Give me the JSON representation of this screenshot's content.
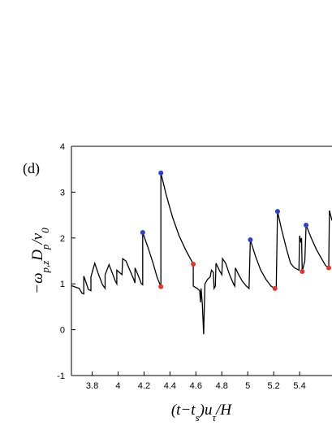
{
  "chart_data": {
    "type": "line",
    "title": "(d)",
    "xlabel": [
      "(t−t",
      "s",
      ")u",
      "τ",
      "/H"
    ],
    "ylabel": [
      "−ω",
      "p,z",
      "D",
      "p",
      "/v",
      "0"
    ],
    "xlim": [
      3.64,
      5.65
    ],
    "ylim": [
      -1,
      4
    ],
    "xticks": [
      3.8,
      4.0,
      4.2,
      4.4,
      4.6,
      4.8,
      5.0,
      5.2,
      5.4
    ],
    "yticks": [
      -1,
      0,
      1,
      2,
      3,
      4
    ],
    "series": [
      {
        "type": "line",
        "color": "#000000",
        "x": [
          3.64,
          3.67,
          3.7,
          3.72,
          3.735,
          3.735,
          3.75,
          3.77,
          3.79,
          3.79,
          3.82,
          3.85,
          3.88,
          3.9,
          3.9,
          3.93,
          3.96,
          3.98,
          3.99,
          3.99,
          4.01,
          4.03,
          4.035,
          4.06,
          4.09,
          4.12,
          4.13,
          4.13,
          4.16,
          4.18,
          4.19,
          4.19,
          4.23,
          4.27,
          4.3,
          4.33,
          4.33,
          4.37,
          4.42,
          4.47,
          4.52,
          4.58,
          4.58,
          4.61,
          4.63,
          4.635,
          4.64,
          4.65,
          4.66,
          4.665,
          4.67,
          4.69,
          4.71,
          4.72,
          4.735,
          4.74,
          4.75,
          4.755,
          4.78,
          4.8,
          4.805,
          4.83,
          4.86,
          4.89,
          4.9,
          4.905,
          4.93,
          4.96,
          4.99,
          5.01,
          5.02,
          5.06,
          5.1,
          5.14,
          5.18,
          5.21,
          5.22,
          5.23,
          5.26,
          5.3,
          5.33,
          5.36,
          5.395,
          5.4,
          5.41,
          5.415,
          5.42,
          5.44,
          5.45,
          5.49,
          5.53,
          5.57,
          5.6,
          5.625,
          5.63,
          5.65
        ],
        "y": [
          0.96,
          0.93,
          0.9,
          0.8,
          0.78,
          1.17,
          1.05,
          0.88,
          0.85,
          1.15,
          1.45,
          1.2,
          0.98,
          0.9,
          1.2,
          1.42,
          1.2,
          1.05,
          1.0,
          1.3,
          1.25,
          1.2,
          1.55,
          1.5,
          1.3,
          1.1,
          1.02,
          1.35,
          1.15,
          1.0,
          0.98,
          2.12,
          1.8,
          1.45,
          1.15,
          0.94,
          3.42,
          2.95,
          2.45,
          2.05,
          1.75,
          1.43,
          0.95,
          0.9,
          0.85,
          0.6,
          0.9,
          0.55,
          -0.1,
          0.5,
          1.0,
          1.1,
          1.15,
          1.3,
          1.25,
          0.9,
          0.95,
          1.45,
          1.3,
          1.2,
          1.55,
          1.45,
          1.2,
          1.0,
          0.95,
          1.35,
          1.2,
          1.05,
          0.95,
          0.9,
          1.96,
          1.6,
          1.3,
          1.1,
          0.95,
          0.9,
          0.92,
          2.58,
          2.2,
          1.75,
          1.45,
          1.35,
          1.3,
          2.05,
          1.9,
          2.0,
          1.27,
          1.5,
          2.28,
          2.0,
          1.75,
          1.55,
          1.4,
          1.35,
          2.6,
          2.38
        ]
      },
      {
        "type": "scatter",
        "color": "#2b3fd6",
        "x": [
          4.19,
          4.33,
          5.02,
          5.23,
          5.45
        ],
        "y": [
          2.12,
          3.42,
          1.96,
          2.58,
          2.28
        ]
      },
      {
        "type": "scatter",
        "color": "#e8342c",
        "x": [
          4.33,
          4.58,
          5.21,
          5.42,
          5.625
        ],
        "y": [
          0.94,
          1.43,
          0.9,
          1.27,
          1.35
        ]
      }
    ]
  }
}
